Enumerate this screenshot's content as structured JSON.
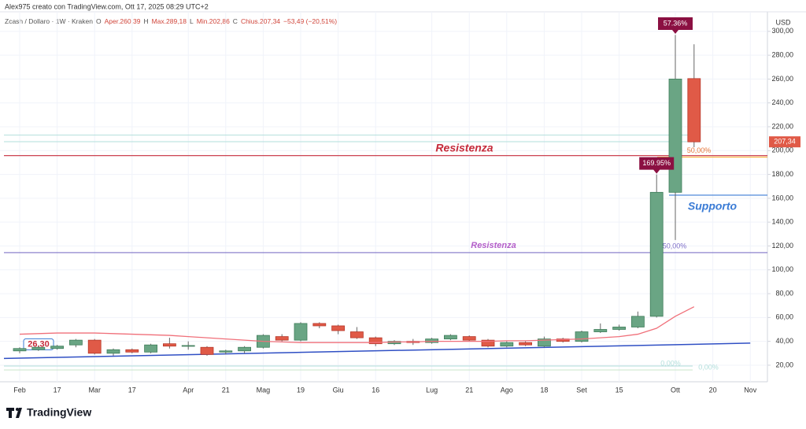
{
  "header": "Alex975 creato con TradingView.com, Ott 17, 2025 08:29 UTC+2",
  "brand": "TradingView",
  "chart_data": {
    "type": "candlestick",
    "legend_items": [
      "Zcash / Dollaro · 1W · Kraken",
      "O",
      "Aper.260,39",
      "H",
      "Max.289,18",
      "L",
      "Min.202,86",
      "C",
      "Chius.207,34",
      "−53,49 (−20,51%)"
    ],
    "currency": "USD",
    "categories": [
      "Feb",
      null,
      "17",
      null,
      "Mar",
      null,
      "17",
      null,
      null,
      "Apr",
      null,
      "21",
      null,
      "Mag",
      null,
      "19",
      null,
      "Giu",
      null,
      "16",
      null,
      null,
      "Lug",
      null,
      "21",
      null,
      "Ago",
      null,
      "18",
      null,
      "Set",
      null,
      "15",
      null,
      null,
      "Ott",
      null,
      "20",
      null,
      "Nov"
    ],
    "open": [
      32,
      33,
      34,
      37,
      41,
      30,
      33,
      31,
      38,
      36,
      35,
      31,
      32,
      35,
      44,
      41,
      55,
      53,
      48,
      43,
      38,
      40,
      39,
      42,
      44,
      41,
      36,
      39,
      36,
      42,
      40,
      48,
      50,
      52,
      61,
      165,
      260.39,
      null,
      null,
      null
    ],
    "high": [
      35,
      36,
      37,
      42,
      42,
      34,
      34,
      38,
      43,
      40,
      36,
      33,
      36,
      46,
      46,
      56,
      56,
      54,
      52,
      44,
      41,
      42,
      43,
      46,
      45,
      42,
      40,
      40,
      44,
      43,
      49,
      55,
      54,
      65,
      180,
      297,
      289.18,
      null,
      null,
      null
    ],
    "low": [
      30,
      32,
      33,
      35,
      29,
      28,
      30,
      30,
      34,
      33,
      28,
      29,
      30,
      34,
      40,
      40,
      51,
      46,
      42,
      36,
      37,
      37,
      38,
      41,
      40,
      35,
      35,
      36,
      35,
      39,
      39,
      47,
      49,
      51,
      60,
      125,
      202.86,
      null,
      null,
      null
    ],
    "close": [
      34,
      35,
      36,
      41,
      30,
      33,
      31,
      37,
      36,
      36.5,
      29,
      32,
      35,
      45,
      41,
      55,
      53,
      49,
      43,
      38,
      40,
      39,
      42,
      45,
      41,
      36,
      39,
      37,
      42,
      40,
      48,
      50,
      52,
      61,
      165,
      260,
      207.34,
      null,
      null,
      null
    ],
    "last_price_label": "207,34",
    "up_color": "#6aa584",
    "down_color": "#e05a47",
    "change": [
      null,
      null,
      null,
      null,
      null,
      null,
      null,
      null,
      null,
      null,
      null,
      null,
      null,
      null,
      null,
      null,
      null,
      null,
      null,
      null,
      null,
      null,
      null,
      null,
      null,
      null,
      null,
      null,
      null,
      null,
      null,
      null,
      null,
      null,
      169.95,
      57.36,
      null,
      null,
      null,
      null
    ],
    "change_labels": [
      null,
      null,
      null,
      null,
      null,
      null,
      null,
      null,
      null,
      null,
      null,
      null,
      null,
      null,
      null,
      null,
      null,
      null,
      null,
      null,
      null,
      null,
      null,
      null,
      null,
      null,
      null,
      null,
      null,
      null,
      null,
      null,
      null,
      null,
      "169.95%",
      "57.36%",
      null,
      null,
      null,
      null
    ],
    "ema": {
      "color": "#f0707a",
      "values": [
        46,
        46.5,
        47,
        47,
        47,
        46.5,
        46,
        45.5,
        45,
        44,
        43,
        42,
        41,
        40,
        39.5,
        39,
        39,
        39,
        39,
        39,
        39.5,
        39.5,
        40,
        40,
        40,
        40,
        40.5,
        40.5,
        41,
        41.5,
        42,
        43,
        44,
        46,
        51,
        61,
        69,
        null,
        null,
        null
      ]
    },
    "trendline": {
      "color": "#2f4fc4",
      "x": [
        0,
        39
      ],
      "values": [
        26.3,
        38.5
      ],
      "label": "26,30"
    },
    "hlines": [
      {
        "value": 195.8,
        "color": "#c62c3b",
        "label": "Resistenza"
      },
      {
        "value": 162.6,
        "color": "#3a7bd5",
        "label": "Supporto"
      },
      {
        "value": 114.4,
        "color": "#5c4db8",
        "label": "Resistenza",
        "label_color": "#b35ec9",
        "pct": "50,00%"
      }
    ],
    "fib_lines": [
      {
        "value": 194.5,
        "color": "#f5a623",
        "label": "50,00%"
      },
      {
        "value": 213,
        "color": "#b2dfdb"
      },
      {
        "value": 207.5,
        "color": "#b2dfdb"
      },
      {
        "value": 19.3,
        "color": "#b2dfdb",
        "label": "0,00%"
      },
      {
        "value": 16,
        "color": "#c8e6c9",
        "label": "0,00%"
      }
    ],
    "ylim": [
      6.1,
      316.4
    ],
    "yticks": [
      {
        "value": 20,
        "label": "20,00"
      },
      {
        "value": 40,
        "label": "40,00"
      },
      {
        "value": 60,
        "label": "60,00"
      },
      {
        "value": 80,
        "label": "80,00"
      },
      {
        "value": 100,
        "label": "100,00"
      },
      {
        "value": 120,
        "label": "120,00"
      },
      {
        "value": 140,
        "label": "140,00"
      },
      {
        "value": 160,
        "label": "160,00"
      },
      {
        "value": 180,
        "label": "180,00"
      },
      {
        "value": 200,
        "label": "200,00"
      },
      {
        "value": 220,
        "label": "220,00"
      },
      {
        "value": 240,
        "label": "240,00"
      },
      {
        "value": 260,
        "label": "260,00"
      },
      {
        "value": 280,
        "label": "280,00"
      },
      {
        "value": 300,
        "label": "300,00"
      }
    ],
    "grid": true
  }
}
